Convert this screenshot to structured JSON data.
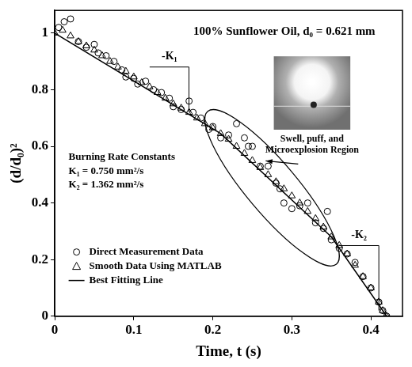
{
  "chart_data": {
    "type": "scatter",
    "title": "100% Sunflower Oil, d₀ = 0.621 mm",
    "x_label": "Time, t (s)",
    "y_label": "(d/d₀)²",
    "xlim": [
      0,
      0.44
    ],
    "ylim": [
      0,
      1.08
    ],
    "xticks": [
      0,
      0.1,
      0.2,
      0.3,
      0.4
    ],
    "yticks": [
      0,
      0.2,
      0.4,
      0.6,
      0.8,
      1
    ],
    "grid": false,
    "legend": "lower left",
    "series": [
      {
        "name": "Direct Measurement Data",
        "type": "scatter",
        "marker": "circle",
        "color": "#000000",
        "x": [
          0.005,
          0.012,
          0.02,
          0.03,
          0.04,
          0.05,
          0.055,
          0.065,
          0.075,
          0.085,
          0.09,
          0.1,
          0.105,
          0.115,
          0.125,
          0.135,
          0.145,
          0.15,
          0.16,
          0.17,
          0.175,
          0.185,
          0.195,
          0.2,
          0.21,
          0.22,
          0.23,
          0.24,
          0.245,
          0.25,
          0.26,
          0.27,
          0.28,
          0.285,
          0.29,
          0.3,
          0.31,
          0.32,
          0.33,
          0.34,
          0.345,
          0.35,
          0.36,
          0.37,
          0.38,
          0.39,
          0.4,
          0.41,
          0.415,
          0.42
        ],
        "values": [
          1.02,
          1.04,
          1.05,
          0.97,
          0.95,
          0.96,
          0.93,
          0.92,
          0.9,
          0.87,
          0.845,
          0.84,
          0.82,
          0.83,
          0.8,
          0.79,
          0.77,
          0.74,
          0.73,
          0.76,
          0.72,
          0.7,
          0.66,
          0.67,
          0.63,
          0.64,
          0.68,
          0.63,
          0.6,
          0.6,
          0.53,
          0.53,
          0.47,
          0.45,
          0.4,
          0.38,
          0.39,
          0.4,
          0.33,
          0.31,
          0.37,
          0.27,
          0.24,
          0.22,
          0.19,
          0.14,
          0.1,
          0.05,
          0.02,
          0
        ]
      },
      {
        "name": "Smooth Data Using MATLAB",
        "type": "scatter",
        "marker": "triangle",
        "color": "#000000",
        "x": [
          0,
          0.01,
          0.02,
          0.03,
          0.04,
          0.05,
          0.06,
          0.07,
          0.08,
          0.09,
          0.1,
          0.11,
          0.12,
          0.13,
          0.14,
          0.15,
          0.16,
          0.17,
          0.18,
          0.19,
          0.2,
          0.21,
          0.22,
          0.23,
          0.24,
          0.25,
          0.26,
          0.27,
          0.28,
          0.29,
          0.3,
          0.31,
          0.32,
          0.33,
          0.34,
          0.35,
          0.36,
          0.37,
          0.38,
          0.39,
          0.4,
          0.41,
          0.415,
          0.42
        ],
        "values": [
          1.0,
          1.01,
          0.99,
          0.97,
          0.955,
          0.94,
          0.92,
          0.9,
          0.88,
          0.865,
          0.845,
          0.825,
          0.81,
          0.79,
          0.77,
          0.75,
          0.735,
          0.72,
          0.7,
          0.68,
          0.665,
          0.645,
          0.625,
          0.6,
          0.575,
          0.55,
          0.525,
          0.5,
          0.475,
          0.45,
          0.425,
          0.4,
          0.37,
          0.345,
          0.315,
          0.28,
          0.25,
          0.22,
          0.18,
          0.14,
          0.1,
          0.05,
          0.02,
          0
        ]
      },
      {
        "name": "Best Fitting Line",
        "type": "line",
        "marker": "none",
        "line_style": "solid",
        "color": "#000000",
        "x": [
          0,
          0.21,
          0.35,
          0.42
        ],
        "values": [
          1.0,
          0.645,
          0.28,
          0
        ]
      }
    ],
    "annotations": {
      "constants_heading": "Burning Rate Constants",
      "constants": [
        "K₁ = 0.750 mm²/s",
        "K₂ = 1.362 mm²/s"
      ],
      "slope_labels": [
        "-K₁",
        "-K₂"
      ],
      "region_label": "Swell, puff, and Microexplosion Region"
    }
  }
}
